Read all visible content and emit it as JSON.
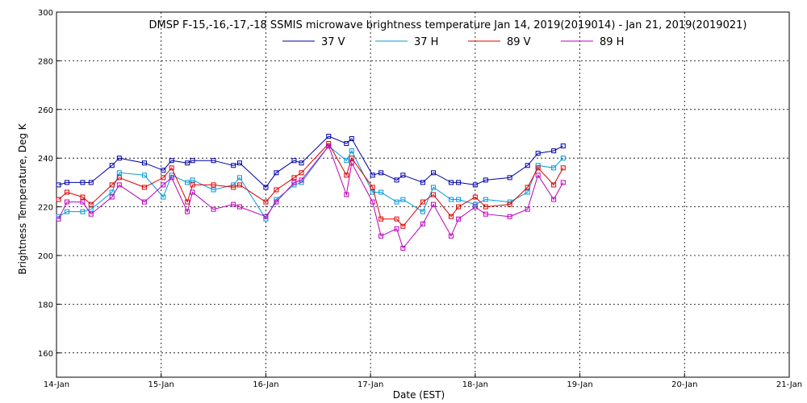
{
  "chart_data": {
    "type": "line",
    "title": "DMSP F-15,-16,-17,-18 SSMIS microwave brightness temperature Jan 14, 2019(2019014) - Jan 21, 2019(2019021)",
    "xlabel": "Date (EST)",
    "ylabel": "Brightness Temperature, Deg K",
    "xlim": [
      0,
      7
    ],
    "ylim": [
      150,
      300
    ],
    "grid": true,
    "legend_position": "top-center",
    "x_ticks": [
      {
        "value": 0,
        "label": "14-Jan"
      },
      {
        "value": 1,
        "label": "15-Jan"
      },
      {
        "value": 2,
        "label": "16-Jan"
      },
      {
        "value": 3,
        "label": "17-Jan"
      },
      {
        "value": 4,
        "label": "18-Jan"
      },
      {
        "value": 5,
        "label": "19-Jan"
      },
      {
        "value": 6,
        "label": "20-Jan"
      },
      {
        "value": 7,
        "label": "21-Jan"
      }
    ],
    "y_ticks": [
      160,
      180,
      200,
      220,
      240,
      260,
      280,
      300
    ],
    "series": [
      {
        "name": "37 V",
        "color": "#0000aa",
        "x": [
          0.02,
          0.1,
          0.25,
          0.33,
          0.53,
          0.6,
          0.84,
          1.02,
          1.1,
          1.25,
          1.3,
          1.5,
          1.69,
          1.75,
          2.0,
          2.1,
          2.27,
          2.34,
          2.6,
          2.77,
          2.82,
          3.02,
          3.1,
          3.25,
          3.31,
          3.5,
          3.6,
          3.77,
          3.84,
          4.0,
          4.1,
          4.33,
          4.5,
          4.6,
          4.75,
          4.84
        ],
        "y": [
          229,
          230,
          230,
          230,
          237,
          240,
          238,
          235,
          239,
          238,
          239,
          239,
          237,
          238,
          228,
          234,
          239,
          238,
          249,
          246,
          248,
          233,
          234,
          231,
          233,
          230,
          234,
          230,
          230,
          229,
          231,
          232,
          237,
          242,
          243,
          245
        ]
      },
      {
        "name": "37 H",
        "color": "#0099dd",
        "x": [
          0.02,
          0.1,
          0.25,
          0.33,
          0.53,
          0.6,
          0.84,
          1.02,
          1.1,
          1.25,
          1.3,
          1.5,
          1.69,
          1.75,
          2.0,
          2.1,
          2.27,
          2.34,
          2.6,
          2.77,
          2.82,
          3.02,
          3.1,
          3.25,
          3.31,
          3.5,
          3.6,
          3.77,
          3.84,
          4.0,
          4.1,
          4.33,
          4.5,
          4.6,
          4.75,
          4.84
        ],
        "y": [
          216,
          218,
          218,
          219,
          226,
          234,
          233,
          224,
          233,
          230,
          231,
          227,
          229,
          232,
          215,
          223,
          229,
          230,
          245,
          239,
          243,
          226,
          226,
          222,
          223,
          218,
          228,
          223,
          223,
          221,
          223,
          222,
          226,
          237,
          236,
          240
        ]
      },
      {
        "name": "89 V",
        "color": "#dd0000",
        "x": [
          0.02,
          0.1,
          0.25,
          0.33,
          0.53,
          0.6,
          0.84,
          1.02,
          1.1,
          1.25,
          1.3,
          1.5,
          1.69,
          1.75,
          2.0,
          2.1,
          2.27,
          2.34,
          2.6,
          2.77,
          2.82,
          3.02,
          3.1,
          3.25,
          3.31,
          3.5,
          3.6,
          3.77,
          3.84,
          4.0,
          4.1,
          4.33,
          4.5,
          4.6,
          4.75,
          4.84
        ],
        "y": [
          223,
          226,
          224,
          221,
          229,
          232,
          228,
          232,
          236,
          222,
          229,
          229,
          228,
          229,
          222,
          227,
          232,
          234,
          246,
          233,
          240,
          228,
          215,
          215,
          212,
          222,
          225,
          216,
          220,
          224,
          220,
          221,
          228,
          236,
          229,
          236
        ]
      },
      {
        "name": "89 H",
        "color": "#bb00bb",
        "x": [
          0.02,
          0.1,
          0.25,
          0.33,
          0.53,
          0.6,
          0.84,
          1.02,
          1.1,
          1.25,
          1.3,
          1.5,
          1.69,
          1.75,
          2.0,
          2.1,
          2.27,
          2.34,
          2.6,
          2.77,
          2.82,
          3.02,
          3.1,
          3.25,
          3.31,
          3.5,
          3.6,
          3.77,
          3.84,
          4.0,
          4.1,
          4.33,
          4.5,
          4.6,
          4.75,
          4.84
        ],
        "y": [
          215,
          222,
          222,
          217,
          224,
          229,
          222,
          229,
          232,
          218,
          226,
          219,
          221,
          220,
          216,
          222,
          230,
          231,
          245,
          225,
          238,
          222,
          208,
          211,
          203,
          213,
          221,
          208,
          215,
          220,
          217,
          216,
          219,
          233,
          223,
          230
        ]
      }
    ]
  }
}
